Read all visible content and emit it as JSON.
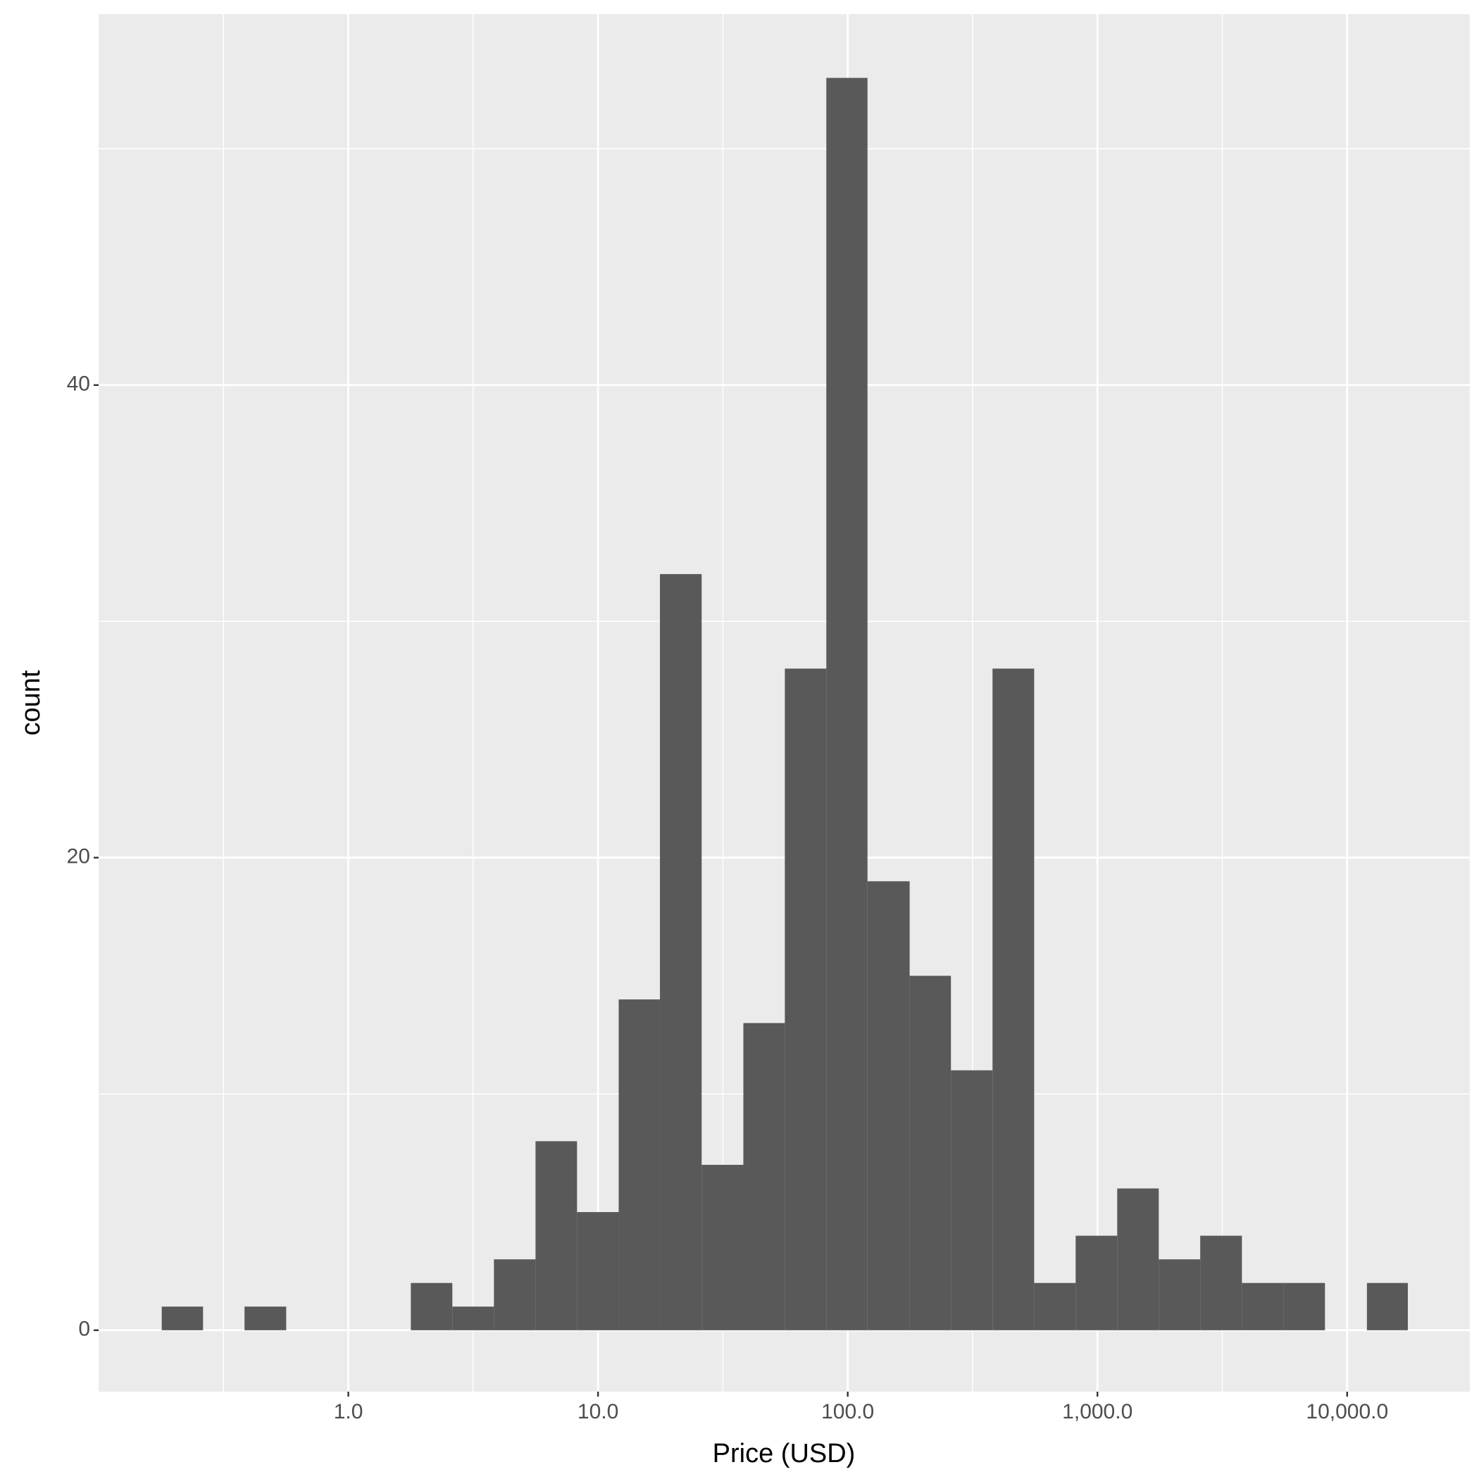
{
  "chart_data": {
    "type": "histogram",
    "x_label": "Price (USD)",
    "y_label": "count",
    "bins": [
      0.179,
      0.262,
      0.384,
      0.564,
      0.827,
      1.21,
      1.78,
      2.61,
      3.83,
      5.62,
      8.24,
      12.1,
      17.7,
      26.0,
      38.2,
      56.0,
      82.1,
      120,
      177,
      259,
      380,
      558,
      818,
      1200,
      1760,
      2580,
      3790,
      5560,
      8150,
      12000,
      17500
    ],
    "values": [
      1,
      0,
      1,
      0,
      0,
      0,
      2,
      1,
      3,
      8,
      5,
      14,
      32,
      7,
      13,
      28,
      53,
      19,
      15,
      11,
      28,
      2,
      4,
      6,
      3,
      4,
      2,
      2,
      0,
      2
    ],
    "color": "#595959",
    "xlog": true,
    "xlim": [
      0.1,
      31000
    ],
    "xticks": [
      {
        "value": 1,
        "label": "1.0"
      },
      {
        "value": 10,
        "label": "10.0"
      },
      {
        "value": 100,
        "label": "100.0"
      },
      {
        "value": 1000,
        "label": "1,000.0"
      },
      {
        "value": 10000,
        "label": "10,000.0"
      }
    ],
    "ylim": [
      -2.6,
      55.7
    ],
    "yticks": [
      0,
      20,
      40
    ],
    "grid": true
  }
}
